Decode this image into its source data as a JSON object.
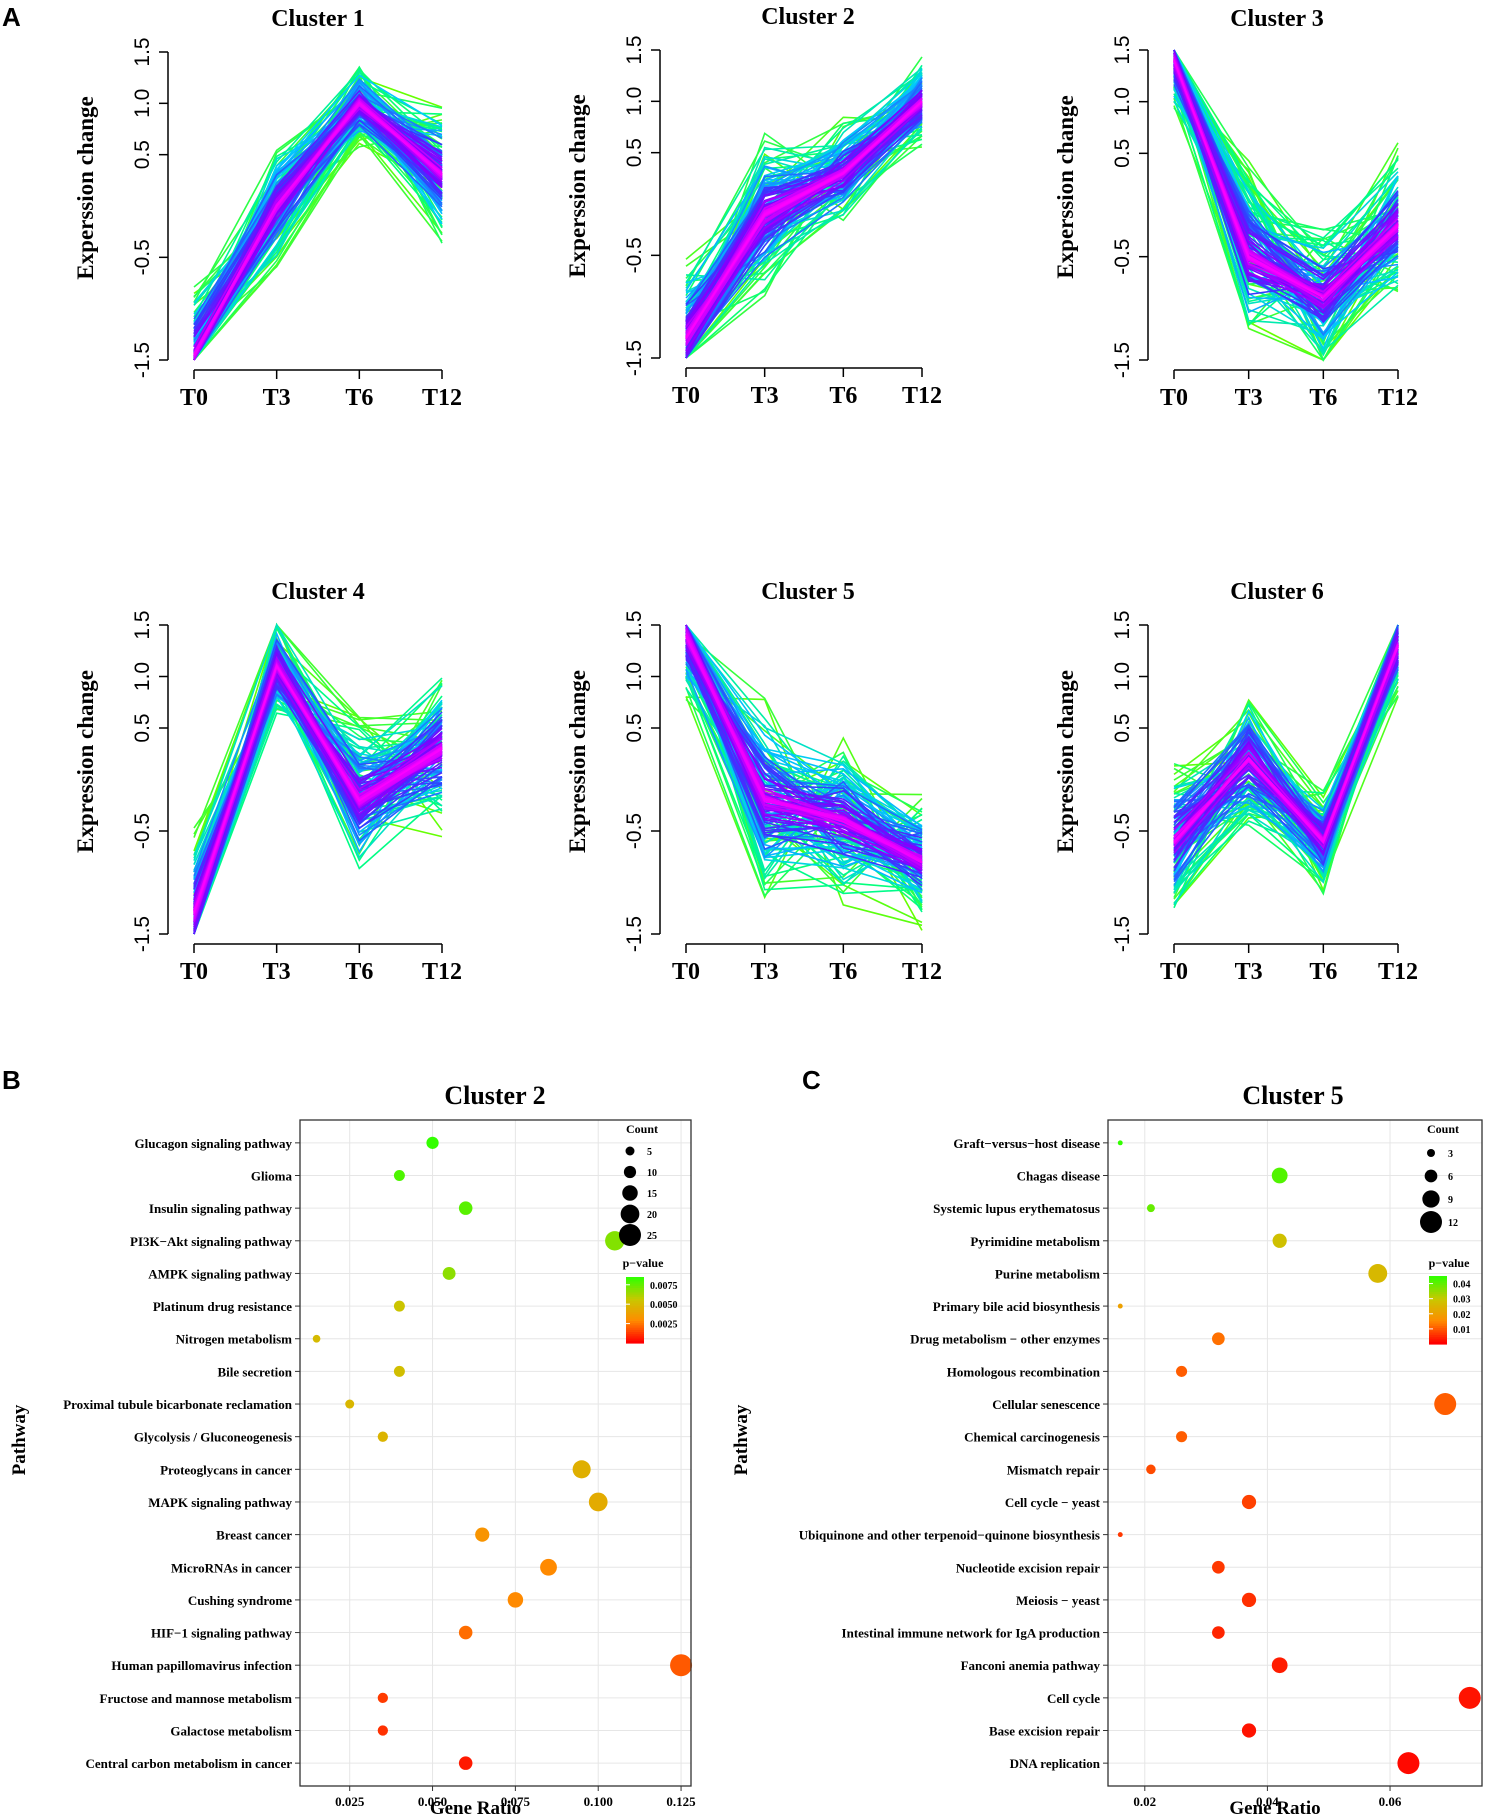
{
  "panel_labels": {
    "a": "A",
    "b": "B",
    "c": "C"
  },
  "colors": {
    "line_ramp": [
      "#66ff00",
      "#00ff80",
      "#00c8ff",
      "#3040ff",
      "#8000ff",
      "#ff00ff"
    ],
    "pvalue_ramp": [
      "#ff0000",
      "#ff8c00",
      "#c8c800",
      "#33ff00"
    ]
  },
  "chart_data": [
    {
      "type": "line",
      "title": "Cluster 1",
      "ylabel": "Experssion change",
      "categories": [
        "T0",
        "T3",
        "T6",
        "T12"
      ],
      "ylim": [
        -1.5,
        1.5
      ],
      "yticks": [
        "-1.5",
        "-0.5",
        "0.5",
        "1.0",
        "1.5"
      ],
      "center": [
        -1.45,
        0.0,
        1.0,
        0.3
      ],
      "spread": [
        0.8,
        0.7,
        0.5,
        0.8
      ]
    },
    {
      "type": "line",
      "title": "Cluster 2",
      "ylabel": "Experssion change",
      "categories": [
        "T0",
        "T3",
        "T6",
        "T12"
      ],
      "ylim": [
        -1.5,
        1.5
      ],
      "yticks": [
        "-1.5",
        "-0.5",
        "0.5",
        "1.0",
        "1.5"
      ],
      "center": [
        -1.3,
        -0.1,
        0.3,
        1.0
      ],
      "spread": [
        0.9,
        0.9,
        0.6,
        0.5
      ]
    },
    {
      "type": "line",
      "title": "Cluster 3",
      "ylabel": "Experssion change",
      "categories": [
        "T0",
        "T3",
        "T6",
        "T12"
      ],
      "ylim": [
        -1.5,
        1.5
      ],
      "yticks": [
        "-1.5",
        "-0.5",
        "0.5",
        "1.0",
        "1.5"
      ],
      "center": [
        1.4,
        -0.5,
        -0.9,
        -0.2
      ],
      "spread": [
        0.6,
        1.0,
        0.8,
        0.9
      ]
    },
    {
      "type": "line",
      "title": "Cluster 4",
      "ylabel": "Expression change",
      "categories": [
        "T0",
        "T3",
        "T6",
        "T12"
      ],
      "ylim": [
        -1.5,
        1.5
      ],
      "yticks": [
        "-1.5",
        "-0.5",
        "0.5",
        "1.0",
        "1.5"
      ],
      "center": [
        -1.3,
        1.1,
        -0.2,
        0.3
      ],
      "spread": [
        0.9,
        0.6,
        0.9,
        0.9
      ]
    },
    {
      "type": "line",
      "title": "Cluster 5",
      "ylabel": "Expression change",
      "categories": [
        "T0",
        "T3",
        "T6",
        "T12"
      ],
      "ylim": [
        -1.5,
        1.5
      ],
      "yticks": [
        "-1.5",
        "-0.5",
        "0.5",
        "1.0",
        "1.5"
      ],
      "center": [
        1.4,
        -0.2,
        -0.4,
        -0.8
      ],
      "spread": [
        0.7,
        1.1,
        0.9,
        0.7
      ]
    },
    {
      "type": "line",
      "title": "Cluster 6",
      "ylabel": "Expression change",
      "categories": [
        "T0",
        "T3",
        "T6",
        "T12"
      ],
      "ylim": [
        -1.5,
        1.5
      ],
      "yticks": [
        "-1.5",
        "-0.5",
        "0.5",
        "1.0",
        "1.5"
      ],
      "center": [
        -0.6,
        0.2,
        -0.6,
        1.3
      ],
      "spread": [
        0.9,
        0.8,
        0.6,
        0.6
      ]
    },
    {
      "type": "scatter",
      "title": "Cluster 2",
      "xlabel": "Gene Ratio",
      "ylabel": "Pathway",
      "xlim": [
        0.01,
        0.128
      ],
      "xticks": [
        0.025,
        0.05,
        0.075,
        0.1,
        0.125
      ],
      "xtick_labels": [
        "0.025",
        "0.050",
        "0.075",
        "0.100",
        "0.125"
      ],
      "size_legend": {
        "title": "Count",
        "values": [
          5,
          10,
          15,
          20,
          25
        ],
        "labels": [
          "5",
          "10",
          "15",
          "20",
          "25"
        ]
      },
      "color_legend": {
        "title": "p−value",
        "range": [
          0,
          0.0085
        ],
        "ticks": [
          0.0025,
          0.005,
          0.0075
        ],
        "labels": [
          "0.0025",
          "0.0050",
          "0.0075"
        ]
      },
      "points": [
        {
          "pathway": "Glucagon signaling pathway",
          "ratio": 0.05,
          "count": 10,
          "p": 0.0085
        },
        {
          "pathway": "Glioma",
          "ratio": 0.04,
          "count": 8,
          "p": 0.008
        },
        {
          "pathway": "Insulin signaling pathway",
          "ratio": 0.06,
          "count": 12,
          "p": 0.0078
        },
        {
          "pathway": "PI3K−Akt signaling pathway",
          "ratio": 0.105,
          "count": 21,
          "p": 0.007
        },
        {
          "pathway": "AMPK signaling pathway",
          "ratio": 0.055,
          "count": 11,
          "p": 0.0068
        },
        {
          "pathway": "Platinum drug resistance",
          "ratio": 0.04,
          "count": 8,
          "p": 0.0055
        },
        {
          "pathway": "Nitrogen metabolism",
          "ratio": 0.015,
          "count": 3,
          "p": 0.005
        },
        {
          "pathway": "Bile secretion",
          "ratio": 0.04,
          "count": 8,
          "p": 0.0052
        },
        {
          "pathway": "Proximal tubule bicarbonate reclamation",
          "ratio": 0.025,
          "count": 5,
          "p": 0.0048
        },
        {
          "pathway": "Glycolysis / Gluconeogenesis",
          "ratio": 0.035,
          "count": 7,
          "p": 0.0047
        },
        {
          "pathway": "Proteoglycans in cancer",
          "ratio": 0.095,
          "count": 19,
          "p": 0.0045
        },
        {
          "pathway": "MAPK signaling pathway",
          "ratio": 0.1,
          "count": 20,
          "p": 0.0043
        },
        {
          "pathway": "Breast cancer",
          "ratio": 0.065,
          "count": 13,
          "p": 0.0032
        },
        {
          "pathway": "MicroRNAs in cancer",
          "ratio": 0.085,
          "count": 17,
          "p": 0.0028
        },
        {
          "pathway": "Cushing syndrome",
          "ratio": 0.075,
          "count": 15,
          "p": 0.0028
        },
        {
          "pathway": "HIF−1 signaling pathway",
          "ratio": 0.06,
          "count": 12,
          "p": 0.0022
        },
        {
          "pathway": "Human papillomavirus infection",
          "ratio": 0.125,
          "count": 25,
          "p": 0.0018
        },
        {
          "pathway": "Fructose and mannose metabolism",
          "ratio": 0.035,
          "count": 7,
          "p": 0.0012
        },
        {
          "pathway": "Galactose metabolism",
          "ratio": 0.035,
          "count": 7,
          "p": 0.001
        },
        {
          "pathway": "Central carbon metabolism in cancer",
          "ratio": 0.06,
          "count": 12,
          "p": 0.0005
        }
      ]
    },
    {
      "type": "scatter",
      "title": "Cluster 5",
      "xlabel": "Gene Ratio",
      "ylabel": "Pathway",
      "xlim": [
        0.014,
        0.075
      ],
      "xticks": [
        0.02,
        0.04,
        0.06
      ],
      "xtick_labels": [
        "0.02",
        "0.04",
        "0.06"
      ],
      "size_legend": {
        "title": "Count",
        "values": [
          3,
          6,
          9,
          12
        ],
        "labels": [
          "3",
          "6",
          "9",
          "12"
        ]
      },
      "color_legend": {
        "title": "p−value",
        "range": [
          0,
          0.045
        ],
        "ticks": [
          0.01,
          0.02,
          0.03,
          0.04
        ],
        "labels": [
          "0.01",
          "0.02",
          "0.03",
          "0.04"
        ]
      },
      "points": [
        {
          "pathway": "Graft−versus−host disease",
          "ratio": 0.016,
          "count": 1,
          "p": 0.045
        },
        {
          "pathway": "Chagas disease",
          "ratio": 0.042,
          "count": 8,
          "p": 0.042
        },
        {
          "pathway": "Systemic lupus erythematosus",
          "ratio": 0.021,
          "count": 3,
          "p": 0.04
        },
        {
          "pathway": "Pyrimidine metabolism",
          "ratio": 0.042,
          "count": 7,
          "p": 0.028
        },
        {
          "pathway": "Purine metabolism",
          "ratio": 0.058,
          "count": 10,
          "p": 0.026
        },
        {
          "pathway": "Primary bile acid biosynthesis",
          "ratio": 0.016,
          "count": 1,
          "p": 0.02
        },
        {
          "pathway": "Drug metabolism − other enzymes",
          "ratio": 0.032,
          "count": 6,
          "p": 0.012
        },
        {
          "pathway": "Homologous recombination",
          "ratio": 0.026,
          "count": 5,
          "p": 0.01
        },
        {
          "pathway": "Cellular senescence",
          "ratio": 0.069,
          "count": 12,
          "p": 0.01
        },
        {
          "pathway": "Chemical carcinogenesis",
          "ratio": 0.026,
          "count": 5,
          "p": 0.01
        },
        {
          "pathway": "Mismatch repair",
          "ratio": 0.021,
          "count": 4,
          "p": 0.008
        },
        {
          "pathway": "Cell cycle − yeast",
          "ratio": 0.037,
          "count": 7,
          "p": 0.007
        },
        {
          "pathway": "Ubiquinone and other terpenoid−quinone biosynthesis",
          "ratio": 0.016,
          "count": 1,
          "p": 0.006
        },
        {
          "pathway": "Nucleotide excision repair",
          "ratio": 0.032,
          "count": 6,
          "p": 0.006
        },
        {
          "pathway": "Meiosis − yeast",
          "ratio": 0.037,
          "count": 7,
          "p": 0.005
        },
        {
          "pathway": "Intestinal immune network for IgA production",
          "ratio": 0.032,
          "count": 6,
          "p": 0.004
        },
        {
          "pathway": "Fanconi anemia pathway",
          "ratio": 0.042,
          "count": 8,
          "p": 0.003
        },
        {
          "pathway": "Cell cycle",
          "ratio": 0.073,
          "count": 14,
          "p": 0.002
        },
        {
          "pathway": "Base excision repair",
          "ratio": 0.037,
          "count": 7,
          "p": 0.002
        },
        {
          "pathway": "DNA replication",
          "ratio": 0.063,
          "count": 12,
          "p": 0.001
        }
      ]
    }
  ]
}
